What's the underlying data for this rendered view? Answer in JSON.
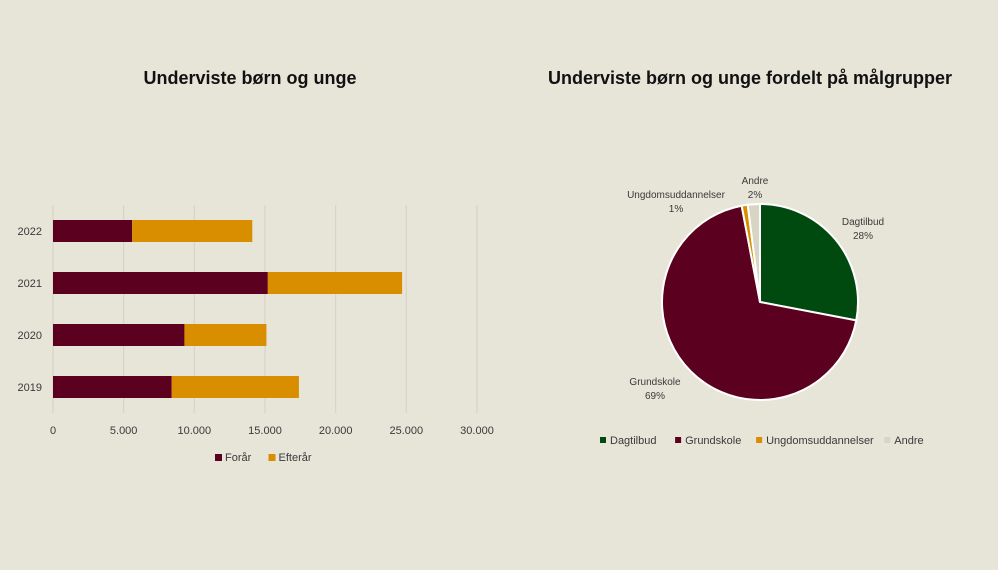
{
  "chart_data": [
    {
      "type": "bar",
      "orientation": "horizontal",
      "stacked": true,
      "title": "Underviste børn og unge",
      "categories": [
        "2022",
        "2021",
        "2020",
        "2019"
      ],
      "series": [
        {
          "name": "Forår",
          "color": "#5c0020",
          "values": [
            5600,
            15200,
            9300,
            8400
          ]
        },
        {
          "name": "Efterår",
          "color": "#d98e00",
          "values": [
            8500,
            9500,
            5800,
            9000
          ]
        }
      ],
      "xlim": [
        0,
        30000
      ],
      "xticks": [
        "0",
        "5.000",
        "10.000",
        "15.000",
        "20.000",
        "25.000",
        "30.000"
      ],
      "grid": true,
      "legend": "bottom"
    },
    {
      "type": "pie",
      "title": "Underviste børn og unge fordelt på målgrupper",
      "slices": [
        {
          "name": "Dagtilbud",
          "value": 28,
          "label": "28%",
          "color": "#004a10"
        },
        {
          "name": "Grundskole",
          "value": 69,
          "label": "69%",
          "color": "#5c0020"
        },
        {
          "name": "Ungdomsuddannelser",
          "value": 1,
          "label": "1%",
          "color": "#d98e00"
        },
        {
          "name": "Andre",
          "value": 2,
          "label": "2%",
          "color": "#d9d5c4"
        }
      ],
      "legend": "bottom"
    }
  ]
}
